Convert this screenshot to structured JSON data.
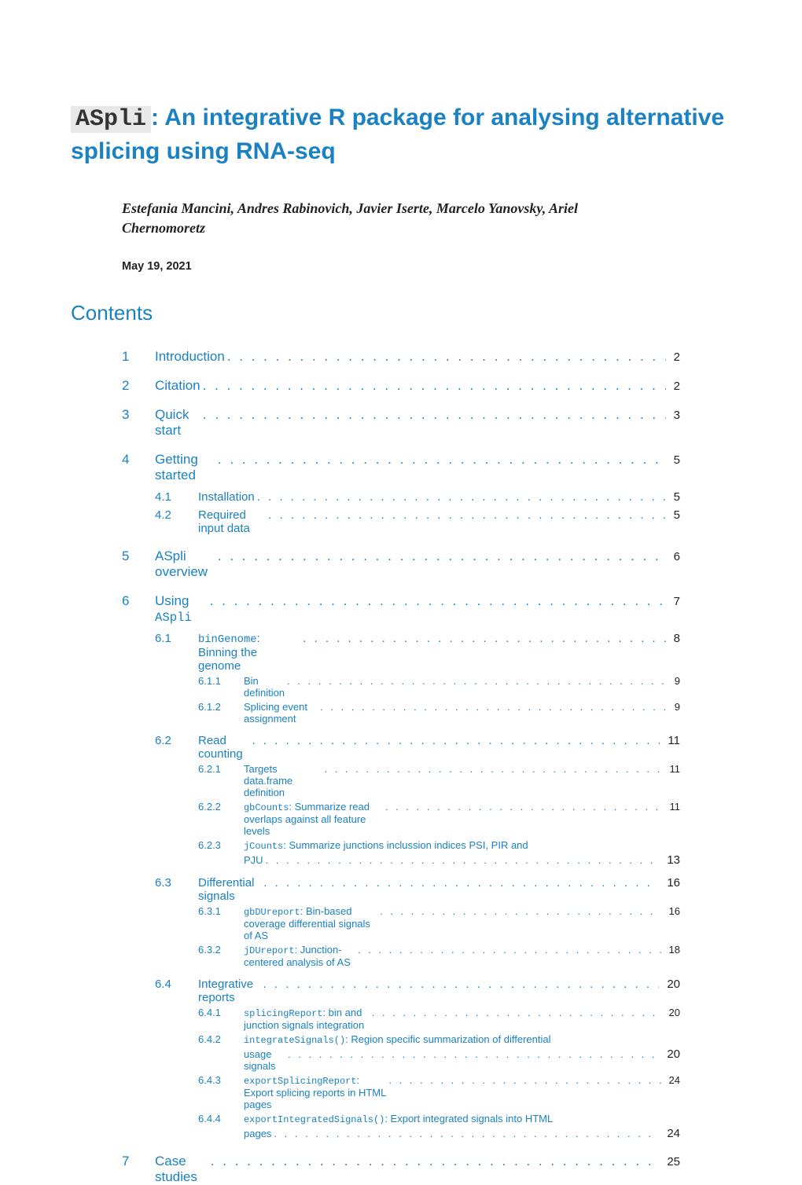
{
  "title": {
    "code": "ASpli",
    "rest": ": An integrative R package for analysing alternative splicing using RNA-seq"
  },
  "authors": "Estefania Mancini, Andres Rabinovich, Javier Iserte, Marcelo Yanovsky, Ariel Chernomoretz",
  "date": "May 19, 2021",
  "contents_heading": "Contents",
  "dots": ". . . . . . . . . . . . . . . . . . . . . . . . . . . . . . . . . . . . . . . . . . . . . . . . . . . . . .",
  "toc": {
    "s1": {
      "num": "1",
      "label": "Introduction",
      "page": "2"
    },
    "s2": {
      "num": "2",
      "label": "Citation",
      "page": "2"
    },
    "s3": {
      "num": "3",
      "label": "Quick start",
      "page": "3"
    },
    "s4": {
      "num": "4",
      "label": "Getting started",
      "page": "5"
    },
    "s4_1": {
      "num": "4.1",
      "label": "Installation",
      "page": "5"
    },
    "s4_2": {
      "num": "4.2",
      "label": "Required input data",
      "page": "5"
    },
    "s5": {
      "num": "5",
      "label": "ASpli overview",
      "page": "6"
    },
    "s6": {
      "num": "6",
      "pre": "Using ",
      "code": "ASpli",
      "page": "7"
    },
    "s6_1": {
      "num": "6.1",
      "code": "binGenome",
      "post": ": Binning the genome",
      "page": "8"
    },
    "s6_1_1": {
      "num": "6.1.1",
      "label": "Bin definition",
      "page": "9"
    },
    "s6_1_2": {
      "num": "6.1.2",
      "label": "Splicing event assignment",
      "page": "9"
    },
    "s6_2": {
      "num": "6.2",
      "label": "Read counting",
      "page": "11"
    },
    "s6_2_1": {
      "num": "6.2.1",
      "label": "Targets data.frame definition",
      "page": "11"
    },
    "s6_2_2": {
      "num": "6.2.2",
      "code": "gbCounts",
      "post": ": Summarize read overlaps against all feature levels",
      "page": "11"
    },
    "s6_2_3": {
      "num": "6.2.3",
      "code": "jCounts",
      "post": ": Summarize junctions inclussion indices PSI, PIR and",
      "cont": "PJU",
      "page": "13"
    },
    "s6_3": {
      "num": "6.3",
      "label": "Differential signals",
      "page": "16"
    },
    "s6_3_1": {
      "num": "6.3.1",
      "code": "gbDUreport",
      "post": ": Bin-based coverage differential signals of AS",
      "page": "16"
    },
    "s6_3_2": {
      "num": "6.3.2",
      "code": "jDUreport",
      "post": ": Junction-centered analysis of AS",
      "page": "18"
    },
    "s6_4": {
      "num": "6.4",
      "label": "Integrative reports",
      "page": "20"
    },
    "s6_4_1": {
      "num": "6.4.1",
      "code": "splicingReport",
      "post": ": bin and junction signals integration",
      "page": "20"
    },
    "s6_4_2": {
      "num": "6.4.2",
      "code": "integrateSignals()",
      "post": ": Region specific summarization of differential",
      "cont": "usage signals",
      "page": "20"
    },
    "s6_4_3": {
      "num": "6.4.3",
      "code": "exportSplicingReport",
      "post": ": Export splicing reports in HTML pages",
      "page": "24"
    },
    "s6_4_4": {
      "num": "6.4.4",
      "code": "exportIntegratedSignals()",
      "post": ": Export integrated signals into HTML",
      "cont": "pages",
      "page": "24"
    },
    "s7": {
      "num": "7",
      "label": "Case studies",
      "page": "25"
    }
  },
  "colors": {
    "link": "#1a81c2",
    "text": "#222222",
    "code_bg": "#e8e8e8",
    "background": "#ffffff"
  }
}
